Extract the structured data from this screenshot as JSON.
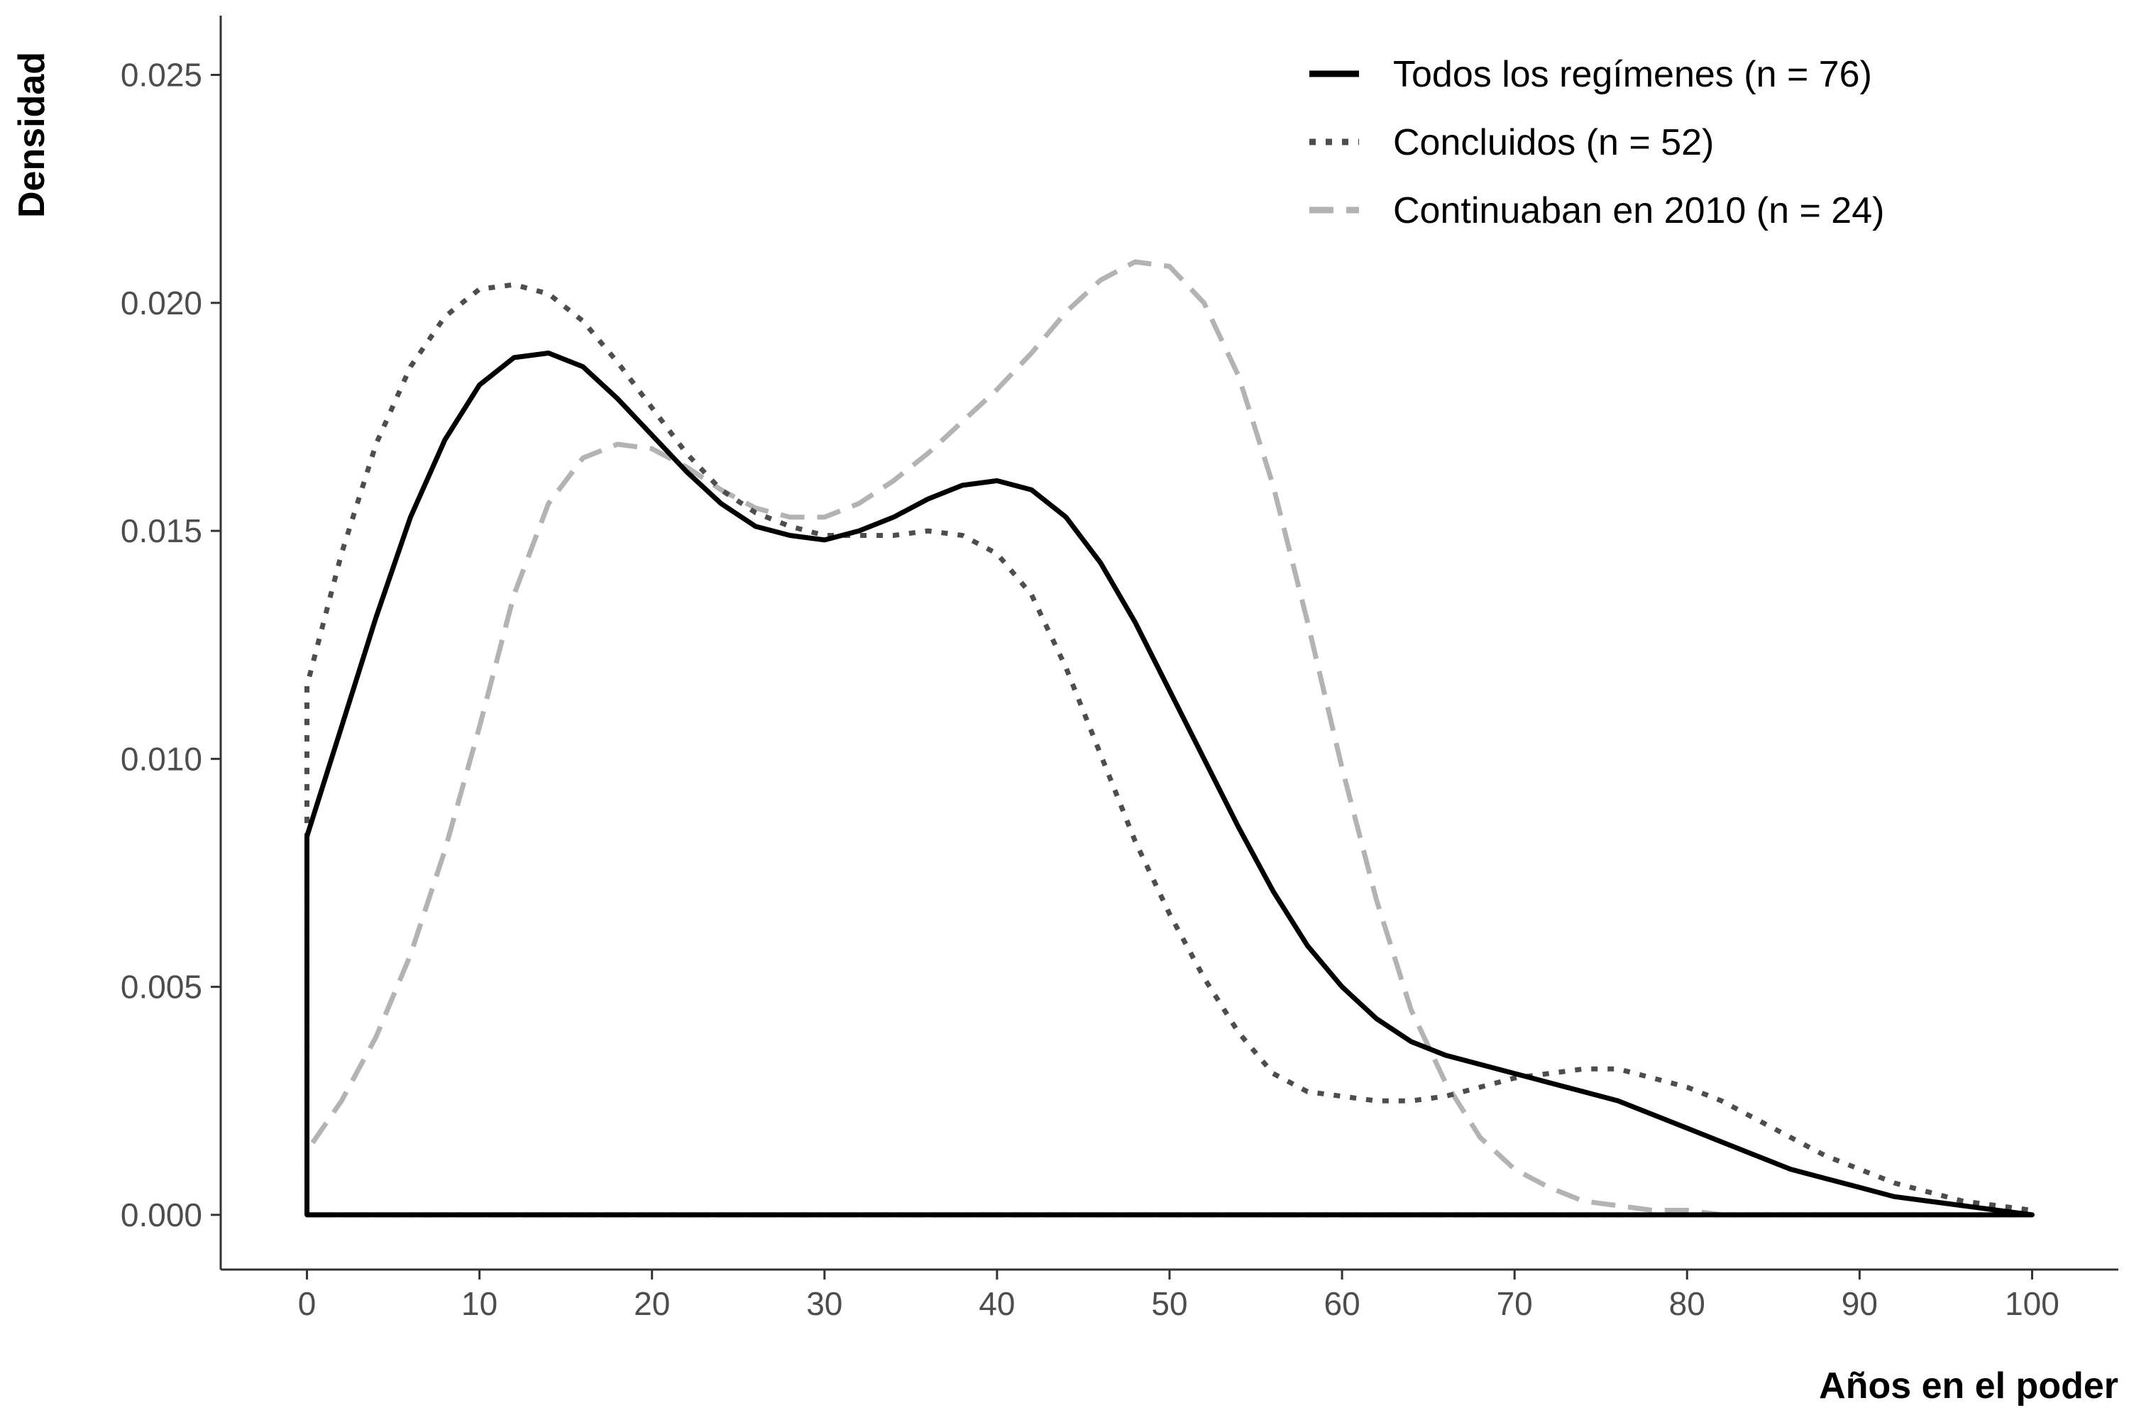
{
  "chart_data": {
    "type": "line",
    "xlabel": "Años en el poder",
    "ylabel": "Densidad",
    "xlim": [
      -5,
      105
    ],
    "ylim": [
      -0.0012,
      0.0263
    ],
    "xticks": [
      "0",
      "10",
      "20",
      "30",
      "40",
      "50",
      "60",
      "70",
      "80",
      "90",
      "100"
    ],
    "xtick_values": [
      0,
      10,
      20,
      30,
      40,
      50,
      60,
      70,
      80,
      90,
      100
    ],
    "yticks": [
      "0.000",
      "0.005",
      "0.010",
      "0.015",
      "0.020",
      "0.025"
    ],
    "ytick_values": [
      0,
      0.005,
      0.01,
      0.015,
      0.02,
      0.025
    ],
    "grid": false,
    "legend_position": "top-right",
    "series": [
      {
        "name": "Todos los regímenes (n = 76)",
        "style": "solid",
        "color": "#000000",
        "x": [
          0,
          2,
          4,
          6,
          8,
          10,
          12,
          14,
          16,
          18,
          20,
          22,
          24,
          26,
          28,
          30,
          32,
          34,
          36,
          38,
          40,
          42,
          44,
          46,
          48,
          50,
          52,
          54,
          56,
          58,
          60,
          62,
          64,
          66,
          68,
          70,
          72,
          74,
          76,
          78,
          80,
          82,
          84,
          86,
          88,
          90,
          92,
          94,
          96,
          98,
          100
        ],
        "y": [
          0.0083,
          0.0107,
          0.0131,
          0.0153,
          0.017,
          0.0182,
          0.0188,
          0.0189,
          0.0186,
          0.0179,
          0.0171,
          0.0163,
          0.0156,
          0.0151,
          0.0149,
          0.0148,
          0.015,
          0.0153,
          0.0157,
          0.016,
          0.0161,
          0.0159,
          0.0153,
          0.0143,
          0.013,
          0.0115,
          0.01,
          0.0085,
          0.0071,
          0.0059,
          0.005,
          0.0043,
          0.0038,
          0.0035,
          0.0033,
          0.0031,
          0.0029,
          0.0027,
          0.0025,
          0.0022,
          0.0019,
          0.0016,
          0.0013,
          0.001,
          0.0008,
          0.0006,
          0.0004,
          0.0003,
          0.0002,
          0.0001,
          0.0
        ]
      },
      {
        "name": "Concluidos (n = 52)",
        "style": "dotted",
        "color": "#4d4d4d",
        "x": [
          0,
          2,
          4,
          6,
          8,
          10,
          12,
          14,
          16,
          18,
          20,
          22,
          24,
          26,
          28,
          30,
          32,
          34,
          36,
          38,
          40,
          42,
          44,
          46,
          48,
          50,
          52,
          54,
          56,
          58,
          60,
          62,
          64,
          66,
          68,
          70,
          72,
          74,
          76,
          78,
          80,
          82,
          84,
          86,
          88,
          90,
          92,
          94,
          96,
          98,
          100
        ],
        "y": [
          0.0116,
          0.0145,
          0.0169,
          0.0186,
          0.0197,
          0.0203,
          0.0204,
          0.0202,
          0.0196,
          0.0187,
          0.0177,
          0.0167,
          0.0159,
          0.0154,
          0.0151,
          0.0149,
          0.0149,
          0.0149,
          0.015,
          0.0149,
          0.0145,
          0.0136,
          0.012,
          0.0101,
          0.0082,
          0.0066,
          0.0052,
          0.004,
          0.0031,
          0.0027,
          0.0026,
          0.0025,
          0.0025,
          0.0026,
          0.0028,
          0.003,
          0.0031,
          0.0032,
          0.0032,
          0.003,
          0.0028,
          0.0025,
          0.0021,
          0.0017,
          0.0013,
          0.001,
          0.0007,
          0.0005,
          0.0003,
          0.0002,
          0.0001
        ]
      },
      {
        "name": "Continuaban en 2010 (n = 24)",
        "style": "dashed",
        "color": "#b3b3b3",
        "x": [
          0,
          2,
          4,
          6,
          8,
          10,
          12,
          14,
          16,
          18,
          20,
          22,
          24,
          26,
          28,
          30,
          32,
          34,
          36,
          38,
          40,
          42,
          44,
          46,
          48,
          50,
          52,
          54,
          56,
          58,
          60,
          62,
          64,
          66,
          68,
          70,
          72,
          74,
          76,
          78,
          80,
          82,
          84,
          86,
          88,
          90,
          92,
          94,
          96,
          98,
          100
        ],
        "y": [
          0.0014,
          0.0025,
          0.0039,
          0.0057,
          0.008,
          0.0107,
          0.0136,
          0.0156,
          0.0166,
          0.0169,
          0.0168,
          0.0164,
          0.0159,
          0.0155,
          0.0153,
          0.0153,
          0.0156,
          0.0161,
          0.0167,
          0.0174,
          0.0181,
          0.0189,
          0.0198,
          0.0205,
          0.0209,
          0.0208,
          0.02,
          0.0184,
          0.016,
          0.013,
          0.0098,
          0.0069,
          0.0045,
          0.0029,
          0.0017,
          0.001,
          0.0006,
          0.0003,
          0.0002,
          0.0001,
          0.0001,
          0.0,
          0.0,
          0.0,
          0.0,
          0.0,
          0.0,
          0.0,
          0.0,
          0.0,
          0.0
        ]
      }
    ]
  }
}
